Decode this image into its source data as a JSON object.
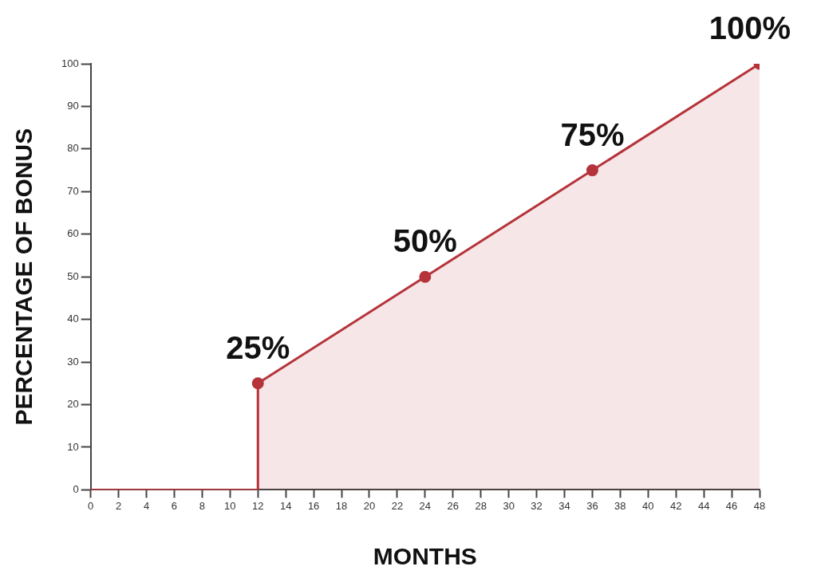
{
  "chart_data": {
    "type": "area",
    "xlabel": "MONTHS",
    "ylabel": "PERCENTAGE OF BONUS",
    "x": [
      0,
      12,
      12,
      24,
      36,
      48
    ],
    "values": [
      0,
      0,
      25,
      50,
      75,
      100
    ],
    "value_labels": [
      null,
      null,
      "25%",
      "50%",
      "75%",
      "100%"
    ],
    "color": "#b5343a",
    "marker": "circle",
    "grid": false,
    "xlim": [
      0,
      48
    ],
    "xticks": [
      0,
      2,
      4,
      6,
      8,
      10,
      12,
      14,
      16,
      18,
      20,
      22,
      24,
      26,
      28,
      30,
      32,
      34,
      36,
      38,
      40,
      42,
      44,
      46,
      48
    ],
    "ylim": [
      0,
      100
    ],
    "yticks": [
      0,
      10,
      20,
      30,
      40,
      50,
      60,
      70,
      80,
      90,
      100
    ]
  }
}
